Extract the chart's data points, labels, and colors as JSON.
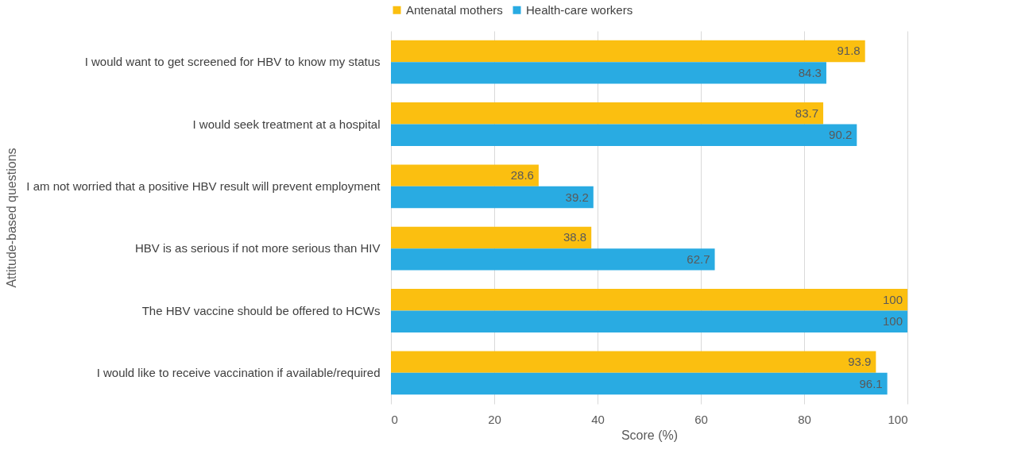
{
  "chart_data": {
    "type": "bar",
    "orientation": "horizontal",
    "ylabel": "Attitude-based questions",
    "xlabel": "Score (%)",
    "categories": [
      "I would want to get screened for HBV to know my status",
      "I would seek treatment at a hospital",
      "I am not worried that a positive HBV result will prevent employment",
      "HBV is as serious if not more serious than HIV",
      "The HBV vaccine should be offered to HCWs",
      "I would like to receive vaccination if available/required"
    ],
    "series": [
      {
        "name": "Antenatal mothers",
        "color": "#fbbf10",
        "values": [
          91.8,
          83.7,
          28.6,
          38.8,
          100,
          93.9
        ]
      },
      {
        "name": "Health-care workers",
        "color": "#29abe2",
        "values": [
          84.3,
          90.2,
          39.2,
          62.7,
          100,
          96.1
        ]
      }
    ],
    "xlim": [
      0,
      100
    ],
    "xticks": [
      0,
      20,
      40,
      60,
      80,
      100
    ],
    "grid": "x",
    "legend": "top",
    "data_labels": true
  }
}
